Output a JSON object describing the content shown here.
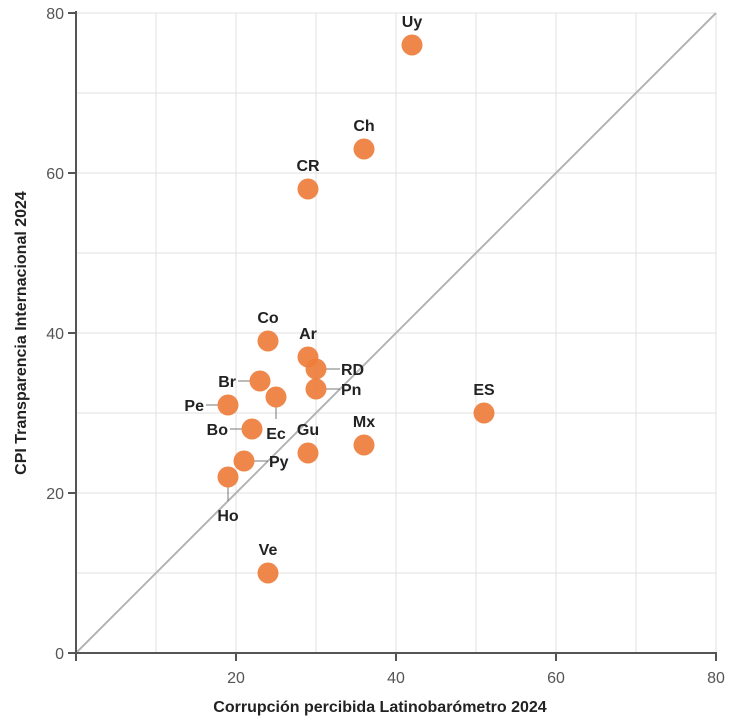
{
  "chart_data": {
    "type": "scatter",
    "title": "",
    "xlabel": "Corrupción percibida Latinobarómetro 2024",
    "ylabel": "CPI Transparencia Internacional 2024",
    "xlim": [
      0,
      80
    ],
    "ylim": [
      0,
      80
    ],
    "x_ticks": [
      "20",
      "40",
      "60",
      "80"
    ],
    "y_ticks": [
      "0",
      "20",
      "40",
      "60",
      "80"
    ],
    "grid": true,
    "reference_line": "y = x",
    "point_color": "#ee7d3b",
    "points": [
      {
        "label": "Uy",
        "x": 42,
        "y": 76
      },
      {
        "label": "Ch",
        "x": 36,
        "y": 63
      },
      {
        "label": "CR",
        "x": 29,
        "y": 58
      },
      {
        "label": "Co",
        "x": 24,
        "y": 39
      },
      {
        "label": "Ar",
        "x": 29,
        "y": 37
      },
      {
        "label": "RD",
        "x": 30,
        "y": 35.5
      },
      {
        "label": "Br",
        "x": 23,
        "y": 34
      },
      {
        "label": "Pn",
        "x": 30,
        "y": 33
      },
      {
        "label": "Ec",
        "x": 25,
        "y": 32
      },
      {
        "label": "Pe",
        "x": 19,
        "y": 31
      },
      {
        "label": "ES",
        "x": 51,
        "y": 30
      },
      {
        "label": "Bo",
        "x": 22,
        "y": 28
      },
      {
        "label": "Mx",
        "x": 36,
        "y": 26
      },
      {
        "label": "Gu",
        "x": 29,
        "y": 25
      },
      {
        "label": "Py",
        "x": 21,
        "y": 24
      },
      {
        "label": "Ho",
        "x": 19,
        "y": 22
      },
      {
        "label": "Ve",
        "x": 24,
        "y": 10
      }
    ]
  }
}
